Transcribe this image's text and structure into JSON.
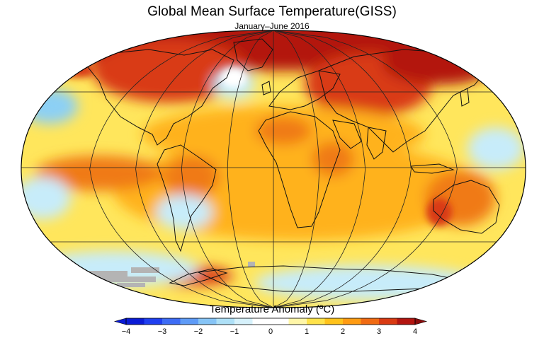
{
  "title": "Global Mean Surface Temperature(GISS)",
  "subtitle": "January–June 2016",
  "legend": {
    "title": "Temperature Anomaly (ºC)",
    "ticks": [
      "−4",
      "−3",
      "−2",
      "−1",
      "0",
      "1",
      "2",
      "3",
      "4"
    ],
    "min": -4,
    "max": 4,
    "colors": [
      "#0a1bd6",
      "#1f3ff0",
      "#3d6cf5",
      "#5e9bf7",
      "#86c4f6",
      "#aee0f7",
      "#d6f1fb",
      "#ffffff",
      "#ffffff",
      "#fff6a8",
      "#ffe24a",
      "#ffc21a",
      "#ff9b12",
      "#f06a12",
      "#d93a12",
      "#b31510"
    ],
    "under_color": "#0a1bd6",
    "over_color": "#8a0d0d"
  },
  "map_colors": {
    "ocean_base": "#ffe65c",
    "warm": "#ffb21e",
    "hot": "#f07a14",
    "very_hot": "#d93a12",
    "extreme": "#b31510",
    "cool": "#c7ecfa",
    "cold": "#8cd0f5",
    "no_data": "#b4b4b4",
    "land_outline": "#111111",
    "graticule": "#222222"
  }
}
